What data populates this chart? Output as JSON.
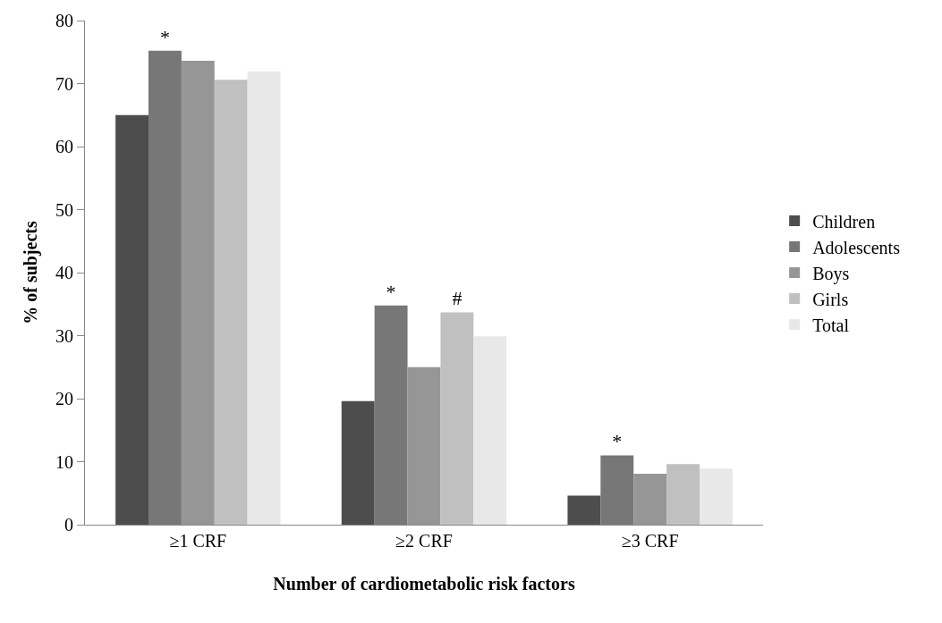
{
  "chart_data": {
    "type": "bar",
    "xlabel": "Number of cardiometabolic risk factors",
    "ylabel": "% of subjects",
    "categories": [
      "≥1 CRF",
      "≥2 CRF",
      "≥3 CRF"
    ],
    "series": [
      {
        "name": "Children",
        "color": "#4d4d4d",
        "values": [
          65,
          19.6,
          4.6
        ]
      },
      {
        "name": "Adolescents",
        "color": "#777777",
        "values": [
          75.2,
          34.8,
          11
        ],
        "value_labels": [
          "*",
          "*",
          "*"
        ]
      },
      {
        "name": "Boys",
        "color": "#969696",
        "values": [
          73.6,
          25,
          8.1
        ]
      },
      {
        "name": "Girls",
        "color": "#c0c0c0",
        "values": [
          70.6,
          33.7,
          9.6
        ],
        "value_labels": [
          null,
          "#",
          null
        ]
      },
      {
        "name": "Total",
        "color": "#e8e8e8",
        "values": [
          71.9,
          29.9,
          8.9
        ]
      }
    ],
    "ylim": [
      0,
      80
    ],
    "yticks": [
      0,
      10,
      20,
      30,
      40,
      50,
      60,
      70,
      80
    ],
    "legend": "right"
  }
}
